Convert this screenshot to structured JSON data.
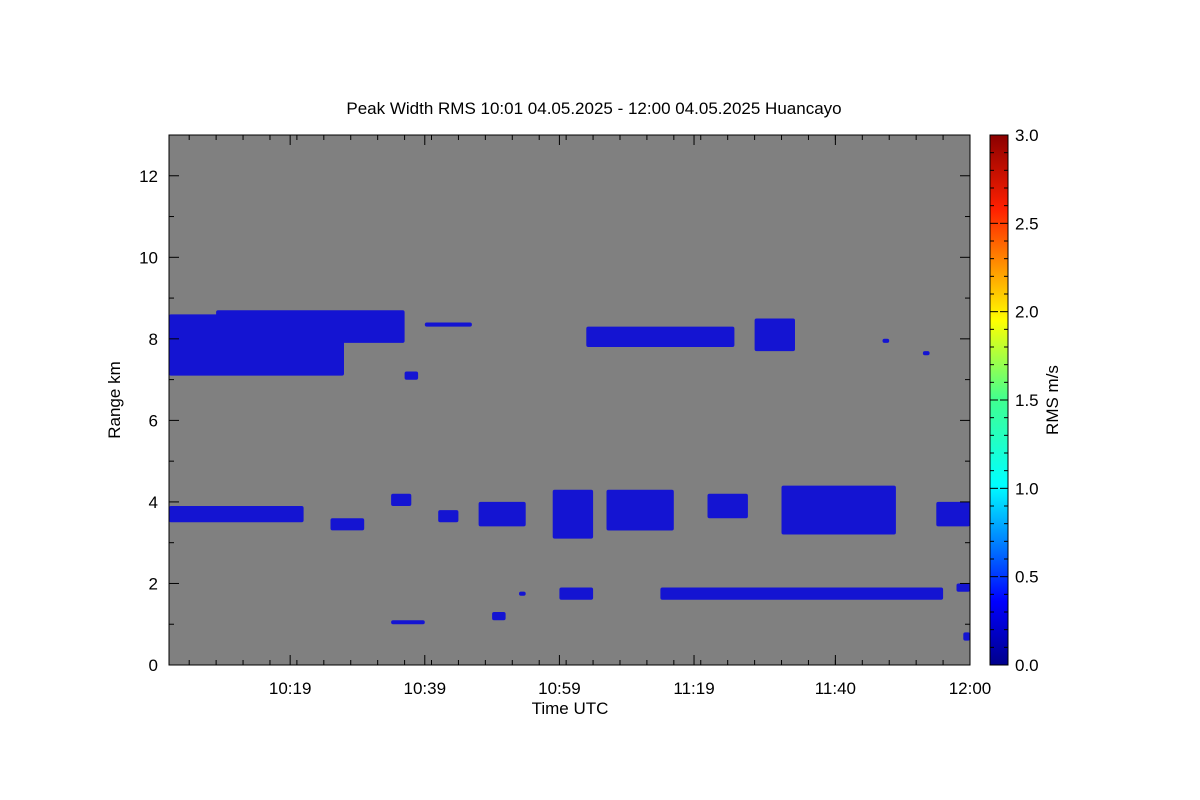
{
  "chart_data": {
    "type": "heatmap",
    "title": "Peak Width RMS   10:01 04.05.2025 - 12:00 04.05.2025 Huancayo",
    "xlabel": "Time UTC",
    "ylabel": "Range km",
    "colorbar_label": "RMS m/s",
    "x_range": [
      "10:01",
      "12:00"
    ],
    "x_ticks": [
      "10:19",
      "10:39",
      "10:59",
      "11:19",
      "11:40",
      "12:00"
    ],
    "ylim": [
      0,
      13
    ],
    "y_ticks": [
      "0",
      "2",
      "4",
      "6",
      "8",
      "10",
      "12"
    ],
    "colorbar_range": [
      0.0,
      3.0
    ],
    "colorbar_ticks": [
      "0.0",
      "0.5",
      "1.0",
      "1.5",
      "2.0",
      "2.5",
      "3.0"
    ],
    "background_color": "#808080",
    "signal_color": "#1414d2",
    "signal_value_approx": 0.35,
    "echo_layers": [
      {
        "start": "10:01",
        "end": "10:27",
        "range_km": [
          7.1,
          8.6
        ]
      },
      {
        "start": "10:08",
        "end": "10:36",
        "range_km": [
          7.9,
          8.7
        ]
      },
      {
        "start": "10:36",
        "end": "10:38",
        "range_km": [
          7.0,
          7.2
        ]
      },
      {
        "start": "10:39",
        "end": "10:46",
        "range_km": [
          8.3,
          8.4
        ]
      },
      {
        "start": "11:03",
        "end": "11:25",
        "range_km": [
          7.8,
          8.3
        ]
      },
      {
        "start": "11:28",
        "end": "11:34",
        "range_km": [
          7.7,
          8.5
        ]
      },
      {
        "start": "11:47",
        "end": "11:48",
        "range_km": [
          7.9,
          8.0
        ]
      },
      {
        "start": "11:53",
        "end": "11:54",
        "range_km": [
          7.6,
          7.7
        ]
      },
      {
        "start": "10:01",
        "end": "10:21",
        "range_km": [
          3.5,
          3.9
        ]
      },
      {
        "start": "10:25",
        "end": "10:30",
        "range_km": [
          3.3,
          3.6
        ]
      },
      {
        "start": "10:34",
        "end": "10:37",
        "range_km": [
          3.9,
          4.2
        ]
      },
      {
        "start": "10:41",
        "end": "10:44",
        "range_km": [
          3.5,
          3.8
        ]
      },
      {
        "start": "10:47",
        "end": "10:54",
        "range_km": [
          3.4,
          4.0
        ]
      },
      {
        "start": "10:58",
        "end": "11:04",
        "range_km": [
          3.1,
          4.3
        ]
      },
      {
        "start": "11:06",
        "end": "11:16",
        "range_km": [
          3.3,
          4.3
        ]
      },
      {
        "start": "11:21",
        "end": "11:27",
        "range_km": [
          3.6,
          4.2
        ]
      },
      {
        "start": "11:32",
        "end": "11:49",
        "range_km": [
          3.2,
          4.4
        ]
      },
      {
        "start": "11:55",
        "end": "12:00",
        "range_km": [
          3.4,
          4.0
        ]
      },
      {
        "start": "10:34",
        "end": "10:39",
        "range_km": [
          1.0,
          1.1
        ]
      },
      {
        "start": "10:49",
        "end": "10:51",
        "range_km": [
          1.1,
          1.3
        ]
      },
      {
        "start": "10:53",
        "end": "10:54",
        "range_km": [
          1.7,
          1.8
        ]
      },
      {
        "start": "10:59",
        "end": "11:04",
        "range_km": [
          1.6,
          1.9
        ]
      },
      {
        "start": "11:14",
        "end": "11:56",
        "range_km": [
          1.6,
          1.9
        ]
      },
      {
        "start": "11:58",
        "end": "12:00",
        "range_km": [
          1.8,
          2.0
        ]
      },
      {
        "start": "11:59",
        "end": "12:00",
        "range_km": [
          0.6,
          0.8
        ]
      }
    ]
  }
}
